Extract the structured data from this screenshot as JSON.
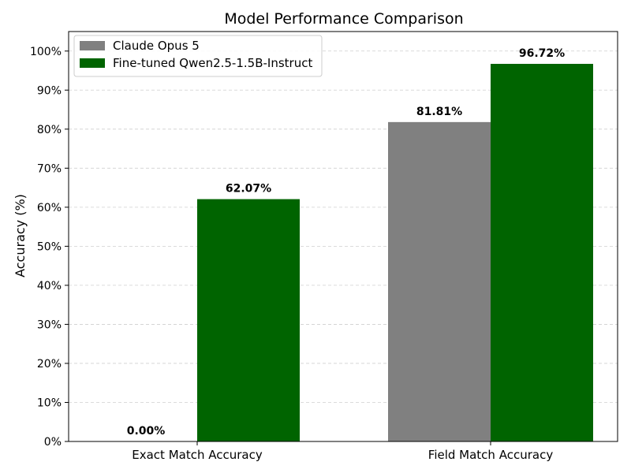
{
  "chart_data": {
    "type": "bar",
    "title": "Model Performance Comparison",
    "xlabel": "",
    "ylabel": "Accuracy (%)",
    "categories": [
      "Exact Match Accuracy",
      "Field Match Accuracy"
    ],
    "series": [
      {
        "name": "Claude Opus 5",
        "values": [
          0.0,
          81.81
        ],
        "color": "#808080",
        "labels": [
          "0.00%",
          "81.81%"
        ]
      },
      {
        "name": "Fine-tuned Qwen2.5-1.5B-Instruct",
        "values": [
          62.07,
          96.72
        ],
        "color": "#006400",
        "labels": [
          "62.07%",
          "96.72%"
        ]
      }
    ],
    "ylim": [
      0,
      105
    ],
    "yticks": [
      0,
      10,
      20,
      30,
      40,
      50,
      60,
      70,
      80,
      90,
      100
    ],
    "ytick_labels": [
      "0%",
      "10%",
      "20%",
      "30%",
      "40%",
      "50%",
      "60%",
      "70%",
      "80%",
      "90%",
      "100%"
    ],
    "grid": "y-dashed",
    "legend_position": "top-left"
  }
}
